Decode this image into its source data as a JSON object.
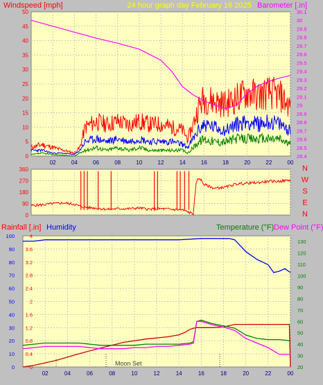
{
  "header": {
    "left_label": "Windspeed [mph]",
    "center_label": "24 hour graph day   February 16 2025",
    "right_label": "Barometer [.in]"
  },
  "compass_labels": [
    "N",
    "W",
    "S",
    "E",
    "N"
  ],
  "bottom_header": {
    "rain_label": "Rainfall [.in]",
    "humidity_label": "Humidity",
    "temp_label": "Temperature (°F)",
    "dew_label": "Dew Point (°F)"
  },
  "annotation": {
    "moon_set": "Moon Set"
  },
  "colors": {
    "plot_bg": "#ffffc0",
    "wind_gust": "#ff0000",
    "wind_avg": "#0000ff",
    "wind_low": "#008000",
    "barometer": "#ff00ff",
    "direction": "#ff0000",
    "humidity": "#0000ff",
    "rain": "#cc0000",
    "temperature": "#008000",
    "dew_point": "#ff00ff"
  },
  "chart_data": [
    {
      "type": "line",
      "panel": "wind_barometer",
      "x_ticks": [
        "02",
        "04",
        "06",
        "08",
        "10",
        "12",
        "14",
        "16",
        "18",
        "20",
        "22",
        "00"
      ],
      "xlim": [
        0,
        24
      ],
      "ylim_left": [
        0,
        50
      ],
      "y_ticks_left": [
        "0",
        "5",
        "10",
        "15",
        "20",
        "25",
        "30",
        "35",
        "40",
        "45",
        "50"
      ],
      "ylim_right": [
        28.4,
        30.1
      ],
      "y_ticks_right": [
        "28.4",
        "28.5",
        "28.6",
        "28.7",
        "28.8",
        "28.9",
        "29",
        "29.1",
        "29.2",
        "29.3",
        "29.4",
        "29.5",
        "29.6",
        "29.7",
        "29.8",
        "29.9",
        "30",
        "30.1"
      ],
      "series": [
        {
          "key": "gust",
          "axis": "left",
          "x": [
            0,
            1,
            2,
            3,
            4,
            4.5,
            5,
            6,
            7,
            8,
            9,
            10,
            11,
            12,
            13,
            14,
            14.5,
            15,
            15.5,
            16,
            17,
            18,
            19,
            20,
            21,
            22,
            23,
            24
          ],
          "values": [
            3,
            4,
            3,
            2,
            1,
            3,
            10,
            12,
            11,
            12,
            11,
            12,
            11,
            11,
            10,
            9,
            6,
            11,
            17,
            20,
            19,
            18,
            20,
            22,
            21,
            22,
            21,
            17
          ]
        },
        {
          "key": "avg",
          "axis": "left",
          "x": [
            0,
            1,
            2,
            3,
            4,
            4.5,
            5,
            6,
            7,
            8,
            9,
            10,
            11,
            12,
            13,
            14,
            14.5,
            15,
            15.5,
            16,
            17,
            18,
            19,
            20,
            21,
            22,
            23,
            24
          ],
          "values": [
            2,
            2,
            1,
            1,
            0.5,
            2,
            5,
            6,
            5,
            6,
            5,
            6,
            5,
            5,
            5,
            4,
            3,
            6,
            9,
            11,
            10,
            9,
            11,
            12,
            11,
            12,
            11,
            9
          ]
        },
        {
          "key": "low",
          "axis": "left",
          "x": [
            0,
            1,
            2,
            3,
            4,
            4.5,
            5,
            6,
            7,
            8,
            9,
            10,
            11,
            12,
            13,
            14,
            14.5,
            15,
            15.5,
            16,
            17,
            18,
            19,
            20,
            21,
            22,
            23,
            24
          ],
          "values": [
            0.5,
            1,
            0.5,
            0.3,
            0,
            1,
            2,
            3,
            2,
            3,
            2,
            3,
            2,
            2,
            2,
            2,
            1,
            3,
            5,
            6,
            5,
            5,
            6,
            6,
            6,
            6,
            6,
            4
          ]
        },
        {
          "key": "barometer",
          "axis": "right",
          "x": [
            0,
            2,
            4,
            6,
            8,
            10,
            12,
            13,
            14,
            15,
            16,
            17,
            18,
            19,
            20,
            21,
            22,
            23,
            24
          ],
          "values": [
            30.0,
            29.93,
            29.86,
            29.79,
            29.73,
            29.66,
            29.53,
            29.4,
            29.22,
            29.12,
            29.05,
            29.0,
            28.96,
            29.0,
            29.14,
            29.23,
            29.28,
            29.32,
            29.35
          ]
        }
      ]
    },
    {
      "type": "line",
      "panel": "wind_direction",
      "ylim": [
        0,
        360
      ],
      "y_ticks": [
        "0",
        "90",
        "180",
        "270",
        "360"
      ],
      "xlim": [
        0,
        24
      ],
      "series": [
        {
          "key": "direction",
          "x": [
            0,
            1,
            2,
            3,
            4,
            4.5,
            5,
            6,
            7,
            8,
            9,
            10,
            11,
            12,
            13,
            14,
            15,
            15.3,
            15.6,
            16,
            17,
            18,
            19,
            20,
            21,
            22,
            23,
            24
          ],
          "values": [
            75,
            80,
            90,
            95,
            85,
            70,
            60,
            55,
            45,
            50,
            50,
            55,
            45,
            50,
            45,
            40,
            10,
            270,
            290,
            240,
            210,
            220,
            245,
            250,
            255,
            265,
            265,
            275
          ]
        }
      ]
    },
    {
      "type": "line",
      "panel": "rain_humidity_temp",
      "xlim": [
        0,
        24
      ],
      "ylim_rain": [
        0,
        4
      ],
      "y_ticks_rain": [
        "0",
        "0.4",
        "0.8",
        "1.2",
        "1.6",
        "2",
        "2.4",
        "2.8",
        "3.2",
        "3.6",
        "4"
      ],
      "ylim_humidity": [
        0,
        100
      ],
      "y_ticks_humidity": [
        "0",
        "10",
        "20",
        "30",
        "40",
        "50",
        "60",
        "70",
        "80",
        "90",
        "100"
      ],
      "ylim_temp": [
        20,
        135
      ],
      "y_ticks_temp": [
        "20",
        "30",
        "40",
        "50",
        "60",
        "70",
        "80",
        "90",
        "100",
        "110",
        "120",
        "130"
      ],
      "series": [
        {
          "key": "humidity",
          "axis": "humidity",
          "x": [
            0,
            1,
            2,
            4,
            6,
            8,
            10,
            12,
            14,
            16,
            17,
            18,
            18.5,
            19,
            20,
            21,
            22,
            22.5,
            23,
            23.5,
            24
          ],
          "values": [
            96,
            96,
            97,
            97,
            97,
            97,
            97,
            97,
            97,
            98,
            98,
            98,
            98,
            97,
            88,
            82,
            78,
            72,
            73,
            75,
            72
          ]
        },
        {
          "key": "rain",
          "axis": "rain",
          "x": [
            0,
            1,
            3,
            5,
            7,
            9,
            11,
            13,
            14,
            14.5,
            15,
            15.5,
            16,
            17,
            18,
            19,
            19.5,
            20,
            22,
            23.5,
            23.9,
            24
          ],
          "values": [
            0,
            0.05,
            0.2,
            0.4,
            0.58,
            0.75,
            0.85,
            0.92,
            0.98,
            1.05,
            1.15,
            1.2,
            1.2,
            1.2,
            1.22,
            1.3,
            1.3,
            1.3,
            1.3,
            1.3,
            1.3,
            0
          ]
        },
        {
          "key": "temperature",
          "axis": "temp",
          "x": [
            0,
            1,
            2,
            3,
            4,
            5,
            6,
            7,
            8,
            9,
            10,
            11,
            12,
            13,
            14,
            15,
            15.3,
            15.6,
            16,
            17,
            18,
            19,
            20,
            21,
            22,
            23,
            24
          ],
          "values": [
            39,
            40,
            41,
            41,
            41,
            41,
            40,
            39,
            39,
            39,
            39,
            40,
            40,
            40,
            40,
            41,
            42,
            60,
            61,
            58,
            56,
            54,
            48,
            45,
            44,
            44,
            43
          ]
        },
        {
          "key": "dew_point",
          "axis": "temp",
          "x": [
            0,
            1,
            2,
            3,
            4,
            5,
            6,
            7,
            8,
            9,
            10,
            11,
            12,
            13,
            14,
            15,
            15.3,
            15.6,
            16,
            17,
            18,
            19,
            20,
            21,
            22,
            23,
            24
          ],
          "values": [
            36,
            37,
            38,
            38,
            38,
            38,
            37,
            36,
            36,
            36,
            37,
            37,
            38,
            38,
            39,
            40,
            41,
            60,
            60,
            57,
            55,
            52,
            45,
            41,
            37,
            31,
            31
          ]
        }
      ]
    }
  ]
}
